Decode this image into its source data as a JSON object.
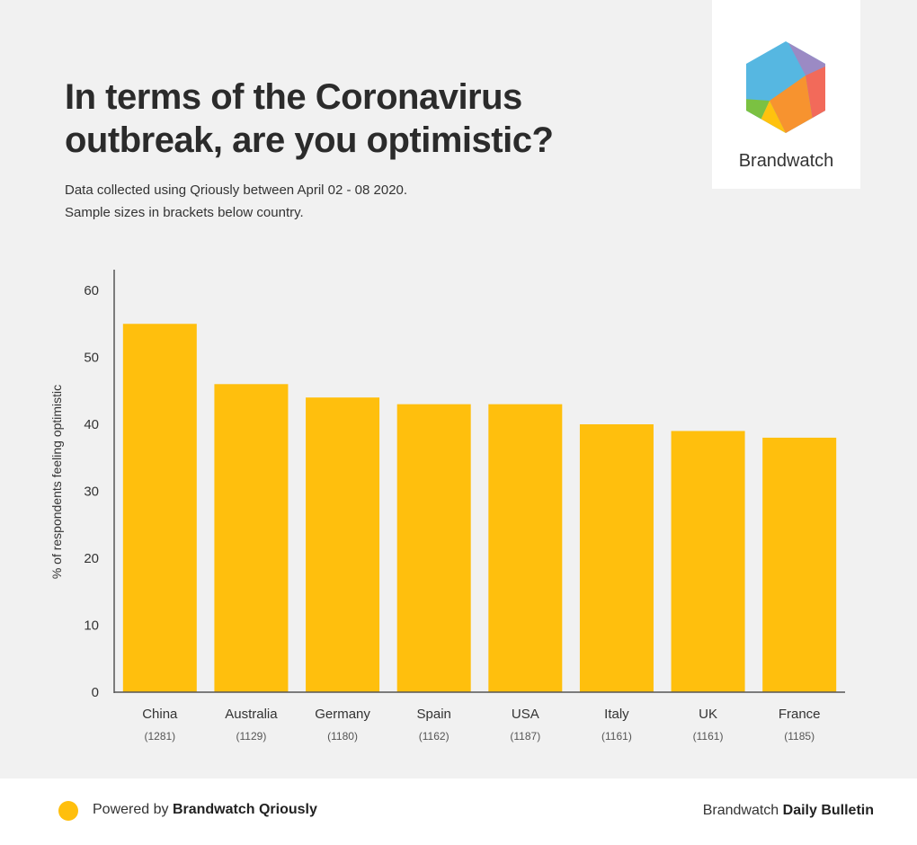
{
  "title": "In terms of the Coronavirus outbreak, are you optimistic?",
  "subtitle": {
    "line1": "Data collected using Qriously between April 02 - 08 2020.",
    "line2": "Sample sizes in brackets below country."
  },
  "logo": {
    "name": "Brandwatch",
    "icon": "hexagon-logo-icon"
  },
  "footer": {
    "left_prefix": "Powered by",
    "left_bold": "Brandwatch Qriously",
    "right_prefix": "Brandwatch",
    "right_bold": "Daily Bulletin"
  },
  "colors": {
    "bar": "#ffbf0d",
    "background": "#f1f1f1",
    "axis": "#555555"
  },
  "chart_data": {
    "type": "bar",
    "title": "In terms of the Coronavirus outbreak, are you optimistic?",
    "xlabel": "",
    "ylabel": "% of respondents feeling optimistic",
    "ylim": [
      0,
      63
    ],
    "yticks": [
      0,
      10,
      20,
      30,
      40,
      50,
      60
    ],
    "grid": false,
    "categories": [
      "China",
      "Australia",
      "Germany",
      "Spain",
      "USA",
      "Italy",
      "UK",
      "France"
    ],
    "sample_sizes": [
      "(1281)",
      "(1129)",
      "(1180)",
      "(1162)",
      "(1187)",
      "(1161)",
      "(1161)",
      "(1185)"
    ],
    "values": [
      55,
      46,
      44,
      43,
      43,
      40,
      39,
      38
    ]
  }
}
